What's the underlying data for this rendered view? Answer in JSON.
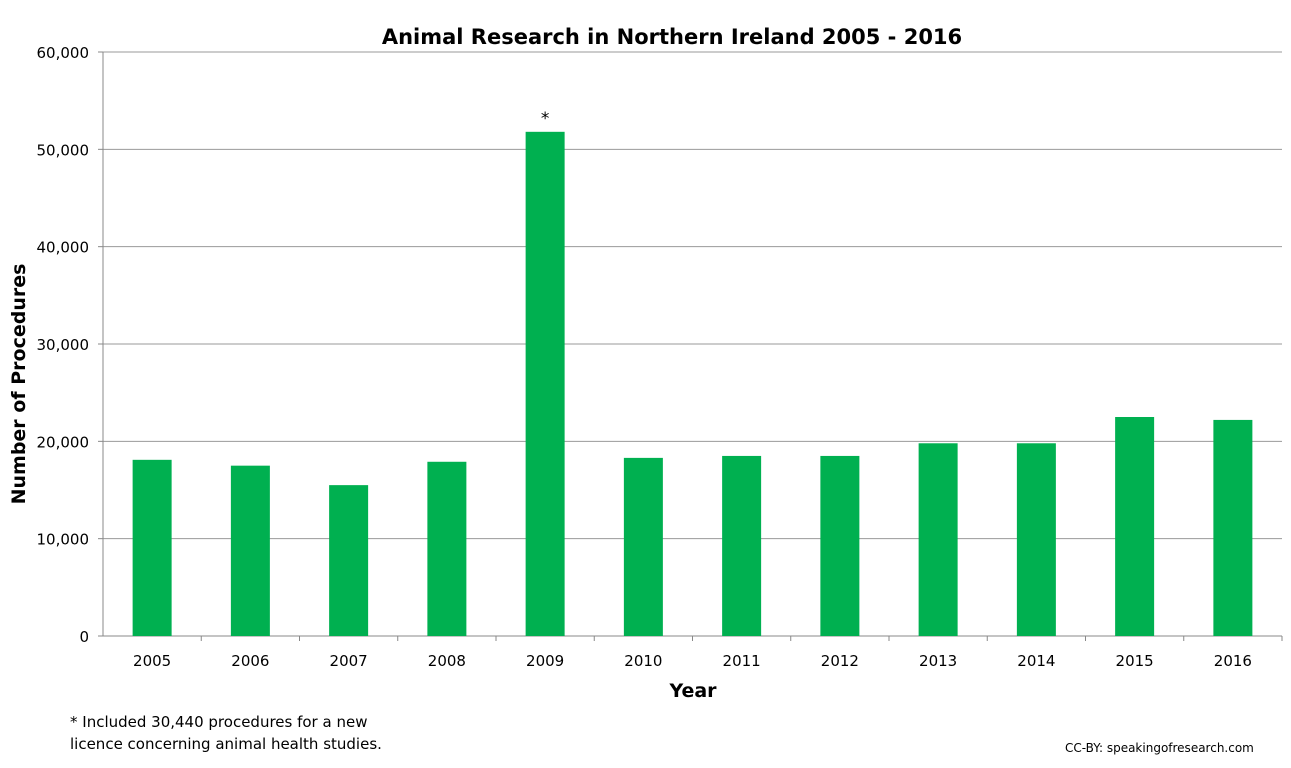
{
  "chart_data": {
    "type": "bar",
    "title": "Animal Research in Northern Ireland 2005 - 2016",
    "xlabel": "Year",
    "ylabel": "Number of Procedures",
    "categories": [
      "2005",
      "2006",
      "2007",
      "2008",
      "2009",
      "2010",
      "2011",
      "2012",
      "2013",
      "2014",
      "2015",
      "2016"
    ],
    "values": [
      18100,
      17500,
      15500,
      17900,
      51800,
      18300,
      18500,
      18500,
      19800,
      19800,
      22500,
      22200
    ],
    "ylim": [
      0,
      60000
    ],
    "yticks": [
      0,
      10000,
      20000,
      30000,
      40000,
      50000,
      60000
    ],
    "ytick_labels": [
      "0",
      "10,000",
      "20,000",
      "30,000",
      "40,000",
      "50,000",
      "60,000"
    ],
    "grid": true,
    "bar_color": "#00b050",
    "annotations": [
      {
        "category": "2009",
        "text": "*"
      }
    ]
  },
  "footnote": {
    "line1": "* Included 30,440 procedures for a new",
    "line2": "licence concerning animal health studies."
  },
  "credit": "CC-BY:  speakingofresearch.com"
}
